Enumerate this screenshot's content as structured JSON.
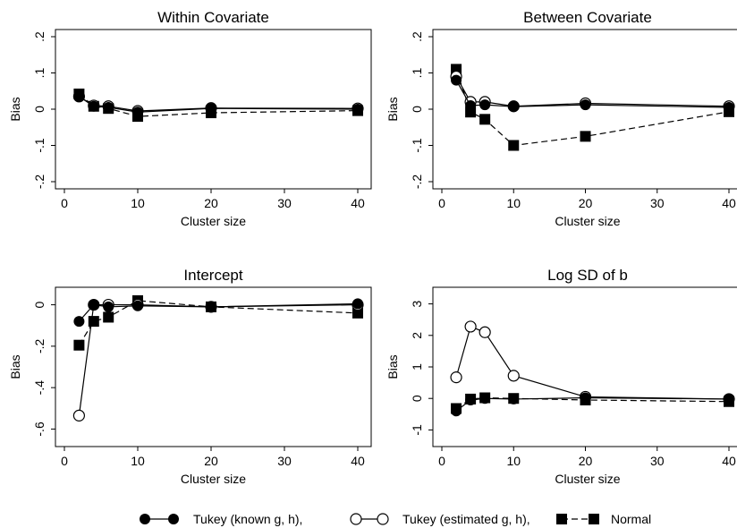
{
  "chart_data": [
    {
      "type": "line",
      "title": "Within Covariate",
      "xlabel": "Cluster size",
      "ylabel": "Bias",
      "xlim": [
        0,
        40
      ],
      "ylim": [
        -0.2,
        0.2
      ],
      "xticks": [
        0,
        10,
        20,
        30,
        40
      ],
      "yticks": [
        -0.2,
        -0.1,
        0,
        0.1,
        0.2
      ],
      "yticklabels": [
        "-.2",
        "-.1",
        "0",
        ".1",
        ".2"
      ],
      "yticks_rotated": true,
      "x": [
        2,
        4,
        6,
        10,
        20,
        40
      ],
      "series": [
        {
          "name": "Tukey (known g, h)",
          "values": [
            0.035,
            0.008,
            0.005,
            -0.008,
            0.002,
            0.0
          ]
        },
        {
          "name": "Tukey (estimated g, h)",
          "values": [
            0.035,
            0.01,
            0.008,
            -0.005,
            0.003,
            0.002
          ]
        },
        {
          "name": "Normal",
          "values": [
            0.042,
            0.008,
            0.002,
            -0.02,
            -0.01,
            -0.004
          ]
        }
      ]
    },
    {
      "type": "line",
      "title": "Between Covariate",
      "xlabel": "Cluster size",
      "ylabel": "Bias",
      "xlim": [
        0,
        40
      ],
      "ylim": [
        -0.2,
        0.2
      ],
      "xticks": [
        0,
        10,
        20,
        30,
        40
      ],
      "yticks": [
        -0.2,
        -0.1,
        0,
        0.1,
        0.2
      ],
      "yticklabels": [
        "-.2",
        "-.1",
        "0",
        ".1",
        ".2"
      ],
      "yticks_rotated": true,
      "x": [
        2,
        4,
        6,
        10,
        20,
        40
      ],
      "series": [
        {
          "name": "Tukey (known g, h)",
          "values": [
            0.08,
            0.01,
            0.012,
            0.007,
            0.012,
            0.005
          ]
        },
        {
          "name": "Tukey (estimated g, h)",
          "values": [
            0.09,
            0.02,
            0.02,
            0.008,
            0.016,
            0.008
          ]
        },
        {
          "name": "Normal",
          "values": [
            0.11,
            -0.008,
            -0.028,
            -0.1,
            -0.075,
            -0.007
          ]
        }
      ]
    },
    {
      "type": "line",
      "title": "Intercept",
      "xlabel": "Cluster size",
      "ylabel": "Bias",
      "xlim": [
        0,
        40
      ],
      "ylim": [
        -0.65,
        0.05
      ],
      "xticks": [
        0,
        10,
        20,
        30,
        40
      ],
      "yticks": [
        -0.6,
        -0.4,
        -0.2,
        0
      ],
      "yticklabels": [
        "-.6",
        "-.4",
        "-.2",
        "0"
      ],
      "yticks_rotated": true,
      "x": [
        2,
        4,
        6,
        10,
        20,
        40
      ],
      "series": [
        {
          "name": "Tukey (known g, h)",
          "values": [
            -0.08,
            0.0,
            -0.01,
            -0.005,
            -0.01,
            0.005
          ]
        },
        {
          "name": "Tukey (estimated g, h)",
          "values": [
            -0.535,
            0.0,
            0.0,
            0.0,
            -0.01,
            0.0
          ]
        },
        {
          "name": "Normal",
          "values": [
            -0.195,
            -0.08,
            -0.06,
            0.02,
            -0.01,
            -0.04
          ]
        }
      ]
    },
    {
      "type": "line",
      "title": "Log SD of b",
      "xlabel": "Cluster size",
      "ylabel": "Bias",
      "xlim": [
        0,
        40
      ],
      "ylim": [
        -1.3,
        3.3
      ],
      "xticks": [
        0,
        10,
        20,
        30,
        40
      ],
      "yticks": [
        -1,
        0,
        1,
        2,
        3
      ],
      "yticklabels": [
        "-1",
        "0",
        "1",
        "2",
        "3"
      ],
      "yticks_rotated": true,
      "x": [
        2,
        4,
        6,
        10,
        20,
        40
      ],
      "series": [
        {
          "name": "Tukey (known g, h)",
          "values": [
            -0.4,
            -0.05,
            0.0,
            -0.02,
            0.02,
            -0.02
          ]
        },
        {
          "name": "Tukey (estimated g, h)",
          "values": [
            0.67,
            2.28,
            2.1,
            0.72,
            0.05,
            -0.02
          ]
        },
        {
          "name": "Normal",
          "values": [
            -0.32,
            -0.02,
            0.02,
            0.0,
            -0.05,
            -0.1
          ]
        }
      ]
    }
  ],
  "legend": {
    "items": [
      {
        "label": "Tukey (known g, h),",
        "marker": "filled-circle",
        "line": "solid"
      },
      {
        "label": "Tukey (estimated g, h),",
        "marker": "open-circle",
        "line": "solid"
      },
      {
        "label": "Normal",
        "marker": "filled-square",
        "line": "dashed"
      }
    ]
  }
}
